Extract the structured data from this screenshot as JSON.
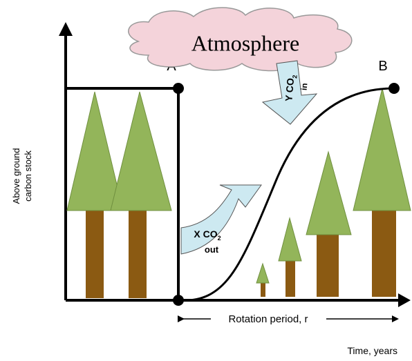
{
  "cloud": {
    "label": "Atmosphere"
  },
  "points": {
    "a": "A",
    "b": "B"
  },
  "y_axis": {
    "label_lines": [
      "Above ground",
      "carbon stock"
    ]
  },
  "x_axis": {
    "label": "Time, years"
  },
  "flows": {
    "out": {
      "prefix": "X CO",
      "subscript": "2",
      "suffix": "out"
    },
    "in": {
      "prefix": "Y CO",
      "subscript": "2",
      "suffix": "in"
    }
  },
  "rotation": {
    "label": "Rotation period, r"
  }
}
